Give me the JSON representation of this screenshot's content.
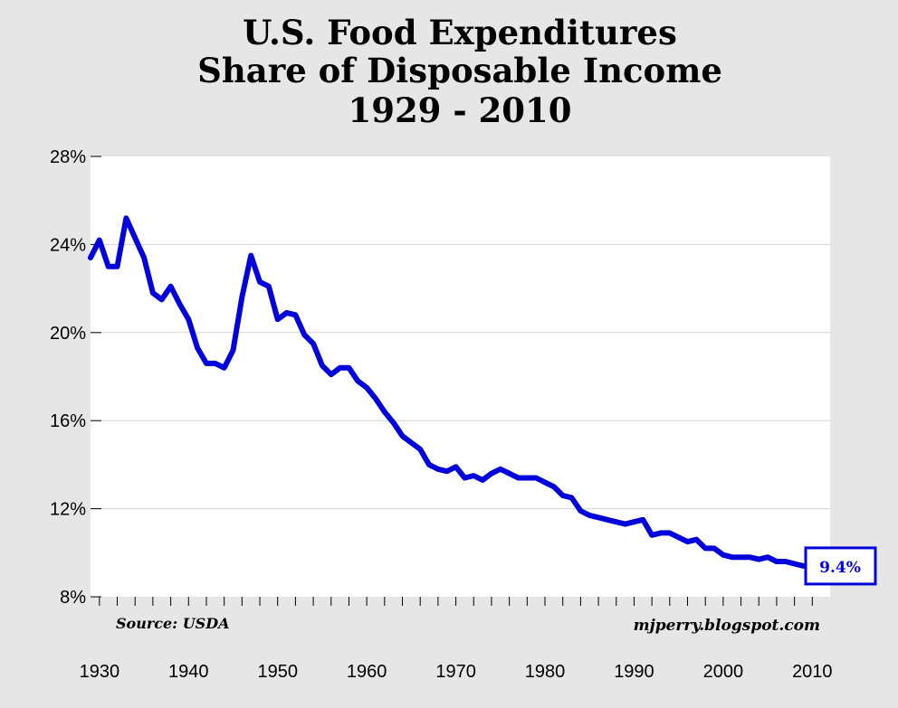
{
  "title": {
    "line1": "U.S. Food Expenditures",
    "line2": "Share of Disposable Income",
    "line3": "1929 - 2010"
  },
  "chart_data": {
    "type": "line",
    "title": "U.S. Food Expenditures Share of Disposable Income 1929 - 2010",
    "xlabel": "",
    "ylabel": "",
    "xlim": [
      1929,
      2012
    ],
    "ylim": [
      8,
      28
    ],
    "x_ticks": [
      1930,
      1940,
      1950,
      1960,
      1970,
      1980,
      1990,
      2000,
      2010
    ],
    "y_ticks": [
      8,
      12,
      16,
      20,
      24,
      28
    ],
    "y_tick_labels": [
      "8%",
      "12%",
      "16%",
      "20%",
      "24%",
      "28%"
    ],
    "x_tick_labels": [
      "1930",
      "1940",
      "1950",
      "1960",
      "1970",
      "1980",
      "1990",
      "2000",
      "2010"
    ],
    "grid": "horizontal",
    "line_color": "#0000dd",
    "series": [
      {
        "x": [
          1929,
          1930,
          1931,
          1932,
          1933,
          1934,
          1935,
          1936,
          1937,
          1938,
          1939,
          1940,
          1941,
          1942,
          1943,
          1944,
          1945,
          1946,
          1947,
          1948,
          1949,
          1950,
          1951,
          1952,
          1953,
          1954,
          1955,
          1956,
          1957,
          1958,
          1959,
          1960,
          1961,
          1962,
          1963,
          1964,
          1965,
          1966,
          1967,
          1968,
          1969,
          1970,
          1971,
          1972,
          1973,
          1974,
          1975,
          1976,
          1977,
          1978,
          1979,
          1980,
          1981,
          1982,
          1983,
          1984,
          1985,
          1986,
          1987,
          1988,
          1989,
          1990,
          1991,
          1992,
          1993,
          1994,
          1995,
          1996,
          1997,
          1998,
          1999,
          2000,
          2001,
          2002,
          2003,
          2004,
          2005,
          2006,
          2007,
          2008,
          2009,
          2010
        ],
        "values": [
          23.4,
          24.2,
          23.0,
          23.0,
          25.2,
          24.3,
          23.4,
          21.8,
          21.5,
          22.1,
          21.3,
          20.6,
          19.3,
          18.6,
          18.6,
          18.4,
          19.2,
          21.6,
          23.5,
          22.3,
          22.1,
          20.6,
          20.9,
          20.8,
          19.9,
          19.5,
          18.5,
          18.1,
          18.4,
          18.4,
          17.8,
          17.5,
          17.0,
          16.4,
          15.9,
          15.3,
          15.0,
          14.7,
          14.0,
          13.8,
          13.7,
          13.9,
          13.4,
          13.5,
          13.3,
          13.6,
          13.8,
          13.6,
          13.4,
          13.4,
          13.4,
          13.2,
          13.0,
          12.6,
          12.5,
          11.9,
          11.7,
          11.6,
          11.5,
          11.4,
          11.3,
          11.4,
          11.5,
          10.8,
          10.9,
          10.9,
          10.7,
          10.5,
          10.6,
          10.2,
          10.2,
          9.9,
          9.8,
          9.8,
          9.8,
          9.7,
          9.8,
          9.6,
          9.6,
          9.5,
          9.4,
          9.4
        ]
      }
    ],
    "annotations": {
      "last_value": "9.4%",
      "source": "Source: USDA",
      "credit": "mjperry.blogspot.com"
    }
  }
}
